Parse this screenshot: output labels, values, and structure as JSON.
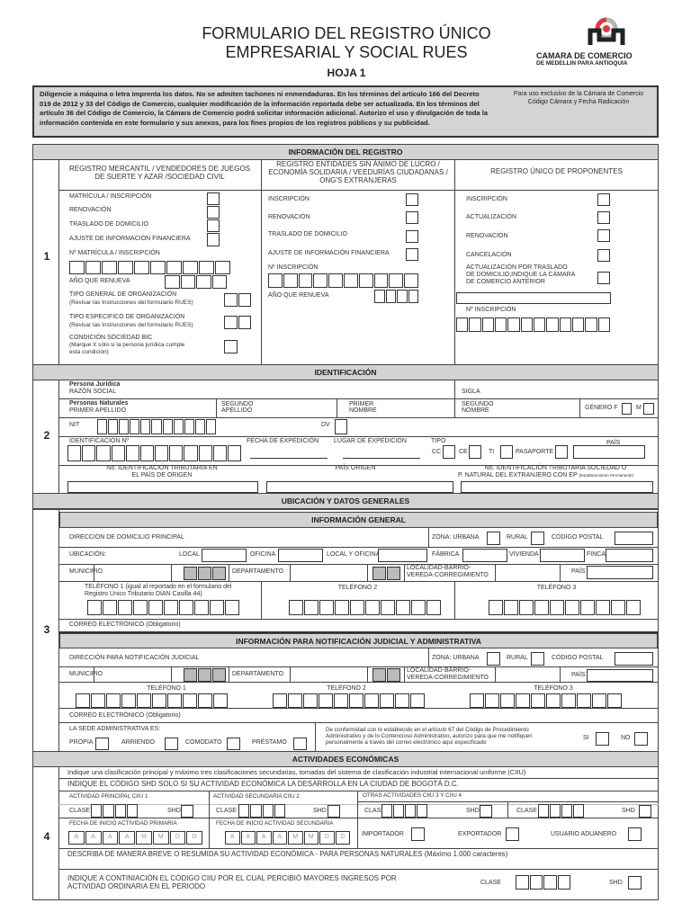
{
  "header": {
    "title_line1": "FORMULARIO DEL REGISTRO ÚNICO",
    "title_line2": "EMPRESARIAL Y SOCIAL RUES",
    "sheet": "HOJA 1",
    "logo": {
      "line1": "CAMARA DE COMERCIO",
      "line2": "DE MEDELLIN PARA ANTIOQUIA",
      "colors": {
        "red": "#e03a3e",
        "gray": "#b5b5b5",
        "black": "#222222"
      }
    }
  },
  "notice": {
    "text": "Diligencie a máquina o letra imprenta los datos. No se admiten tachones ni enmendaduras. En los términos del artículo 166 del Decreto 019 de 2012 y 33 del Código de Comercio, cualquier modificación de la información reportada debe ser actualizada. En los términos del artículo 36 del Código de Comercio, la Cámara de Comercio podrá solicitar información adicional. Autorizo el uso y divulgación de toda la información contenida en este formulario y sus anexos, para los fines propios de los registros públicos y su publicidad.",
    "exclusive_line1": "Para uso exclusivo de la Cámara de Comercio",
    "exclusive_line2": "Código Cámara y Fecha Radicación"
  },
  "s1": {
    "title": "INFORMACIÓN DEL REGISTRO",
    "number": "1",
    "col1": {
      "head": "REGISTRO MERCANTIL / VENDEDORES DE JUEGOS DE SUERTE Y AZAR /SOCIEDAD CIVIL",
      "matricula": "MATRÍCULA / INSCRIPCIÓN",
      "renovacion": "RENOVACIÓN",
      "traslado": "TRASLADO DE DOMICILIO",
      "ajuste": "AJUSTE DE INFORMACIÓN FINANCIERA",
      "num_matricula": "Nº MATRÍCULA / INSCRIPCIÓN",
      "anio": "AÑO QUE RENUEVA",
      "tipo_general": "TIPO GENERAL DE ORGANIZACIÓN",
      "tipo_general_note": "(Revisar las Instrucciones del formulario RUES)",
      "tipo_especifico": "TIPO ESPECIFICO DE ORGANIZACIÓN",
      "tipo_especifico_note": "(Revisar las Instrucciones del formulario RUES)",
      "bic": "CONDICIÓN SOCIEDAD BIC",
      "bic_note1": "(Marque X sólo si la persona jurídica cumple",
      "bic_note2": "esta condición)"
    },
    "col2": {
      "head": "REGISTRO ENTIDADES SIN ÁNIMO DE LUCRO / ECONOMÍA SOLIDARIA / VEEDURÍAS CIUDADANAS / ONG'S EXTRANJERAS",
      "inscripcion": "INSCRIPCIÓN",
      "renovacion": "RENOVACIÓN",
      "traslado": "TRASLADO DE DOMICILIO",
      "ajuste": "AJUSTE DE INFORMACIÓN FINANCIERA",
      "num": "Nº INSCRIPCIÓN",
      "anio": "AÑO QUE RENUEVA"
    },
    "col3": {
      "head": "REGISTRO ÚNICO DE PROPONENTES",
      "inscripcion": "INSCRIPCIÓN",
      "actualizacion": "ACTUALIZACIÓN",
      "renovacion": "RENOVACIÓN",
      "cancelacion": "CANCELACIÓN",
      "traslado1": "ACTUALIZACIÓN POR TRASLADO",
      "traslado2": "DE DOMICILIO,INDIQUE LA CÁMARA",
      "traslado3": "DE COMERCIO ANTERIOR",
      "num": "Nº INSCRIPCIÓN"
    }
  },
  "s2": {
    "title": "IDENTIFICACIÓN",
    "number": "2",
    "pj": "Persona Jurídica",
    "razon": "RAZÓN SOCIAL",
    "sigla": "SIGLA",
    "pn": "Personas Naturales",
    "primer_apellido": "PRIMER APELLIDO",
    "segundo_apellido1": "SEGUNDO",
    "segundo_apellido2": "APELLIDO",
    "primer_nombre1": "PRIMER",
    "primer_nombre2": "NOMBRE",
    "segundo_nombre1": "SEGUNDO",
    "segundo_nombre2": "NOMBRE",
    "genero": "GÉNERO  F",
    "m": "M",
    "nit": "NIT",
    "dv": "DV",
    "id_num": "IDENTIFICACIÓN Nº",
    "fecha_exp": "FECHA DE EXPEDICIÓN",
    "lugar_exp": "LUGAR DE EXPEDICIÓN",
    "tipo": "TIPO",
    "cc": "CC",
    "ce": "CE",
    "ti": "TI",
    "pasaporte": "PASAPORTE",
    "pais": "PAÍS",
    "trib1": "No. IDENTIFICACIÓN TRIBUTARIA EN",
    "trib2": "EL PAÍS DE ORIGEN",
    "pais_origen": "PAÍS ORIGEN",
    "ep1": "No. IDENTIFICACIÓN TRIBUTARIA SOCIEDAD O",
    "ep2": "P. NATURAL DEL EXTRANJERO CON EP",
    "ep_note": "(Establecimiento Permanente)"
  },
  "s3": {
    "title": "UBICACIÓN Y DATOS GENERALES",
    "number": "3",
    "general": "INFORMACIÓN GENERAL",
    "direccion": "DIRECCIÓN DE DOMICILIO PRINCIPAL",
    "zona": "ZONA:  URBANA",
    "rural": "RURAL",
    "cp": "CÓDIGO POSTAL",
    "ubicacion": "UBICACIÓN:",
    "local": "LOCAL",
    "oficina": "OFICINA",
    "local_oficina": "LOCAL Y OFICINA",
    "fabrica": "FÁBRICA",
    "vivienda": "VIVIENDA",
    "finca": "FINCA",
    "municipio": "MUNICIPIO",
    "departamento": "DEPARTAMENTO",
    "localidad1": "LOCALIDAD-BARRIO-",
    "localidad2": "VEREDA-CORREGIMIENTO",
    "pais": "PAÍS",
    "tel1a": "TELÉFONO 1 (igual al reportado en el formulario del",
    "tel1b": "Registro Único Tributario DIAN Casilla 44)",
    "tel1": "TELÉFONO 1",
    "tel2": "TELÉFONO 2",
    "tel3": "TELÉFONO 3",
    "correo": "CORREO ELECTRÓNICO (Obligatorio)",
    "notif": "INFORMACIÓN PARA NOTIFICACIÓN JUDICIAL Y ADMINISTRATIVA",
    "dir_notif": "DIRECCIÓN PARA NOTIFICACIÓN JUDICIAL",
    "sede": "LA SEDE ADMINISTRATIVA ES:",
    "propia": "PROPIA",
    "arriendo": "ARRIENDO",
    "comodato": "COMODATO",
    "prestamo": "PRÉSTAMO",
    "auth1": "De conformidad con lo establecido en el artículo 67 del Código de Procedimiento",
    "auth2": "Administrativo y de lo Contencioso Administrativo, autorizo para que me notifiquen",
    "auth3": "personalmente a través del correo electrónico aquí especificado",
    "si": "SI",
    "no": "NO"
  },
  "s4": {
    "title": "ACTIVIDADES ECONÓMICAS",
    "number": "4",
    "indique": "Indique una clasificación principal y máximo tres clasificaciones secundarias, tomadas del sistema de clasificación industrial internacional uniforme (CIIU)",
    "shd_note": "INDIQUE EL CÓDIGO SHD SOLO SI SU ACTIVIDAD ECONÓMICA LA DESARROLLA EN LA CIUDAD DE BOGOTÁ D.C.",
    "principal": "ACTIVIDAD PRINCIPAL CIIU 1",
    "secundaria": "ACTIVIDAD SECUNDARIA CIIU 2",
    "otras": "OTRAS ACTIVIDADES CIIU 3 Y CIIU 4",
    "clase": "CLASE",
    "shd": "SHD",
    "fecha_prim": "FECHA DE INICIO ACTIVIDAD PRIMARIA",
    "fecha_sec": "FECHA DE INICIO ACTIVIDAD SECUNDARIA",
    "date_placeholder": [
      "A",
      "A",
      "A",
      "A",
      "M",
      "M",
      "D",
      "D"
    ],
    "importador": "IMPORTADOR",
    "exportador": "EXPORTADOR",
    "aduanero": "USUARIO ADUANERO",
    "describa": "DESCRIBA DE MANERA BREVE O RESUMIDA SU ACTIVIDAD ECONÓMICA - PARA PERSONAS NATURALES (Máximo 1.000 caracteres)",
    "mayores1": "INDIQUE A CONTINIACIÓN EL CÓDIGO CIIU POR EL CUAL PERCIBIÓ MAYORES INGRESOS POR",
    "mayores2": "ACTIVIDAD ORDINARIA EN EL PERIODO"
  }
}
